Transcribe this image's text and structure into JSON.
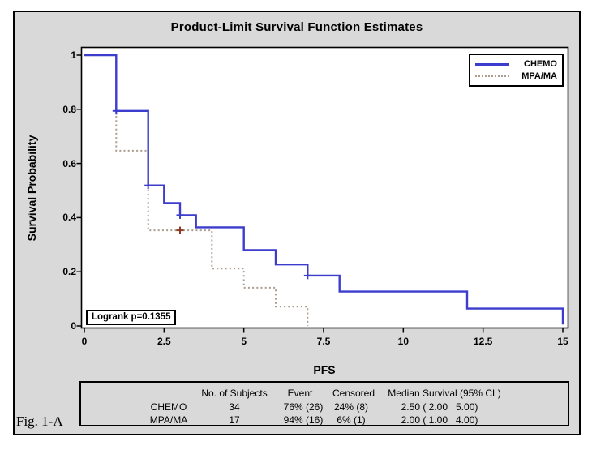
{
  "figure": {
    "fig_label": "Fig. 1-A"
  },
  "chart_data": {
    "type": "line",
    "subtype": "kaplan-meier-step",
    "title": "Product-Limit Survival Function Estimates",
    "xlabel": "PFS",
    "ylabel": "Survival Probability",
    "xlim": [
      0,
      15
    ],
    "ylim": [
      0,
      1
    ],
    "grid": false,
    "legend_position": "top-right",
    "annotation": "Logrank p=0.1355",
    "xticks": {
      "values": [
        0,
        2.5,
        5,
        7.5,
        10,
        12.5,
        15
      ],
      "labels": [
        "0",
        "2.5",
        "5",
        "7.5",
        "10",
        "12.5",
        "15"
      ]
    },
    "yticks": {
      "values": [
        0,
        0.2,
        0.4,
        0.6,
        0.8,
        1
      ],
      "labels": [
        "0",
        "0.2",
        "0.4",
        "0.6",
        "0.8",
        "1"
      ]
    },
    "series": [
      {
        "name": "CHEMO",
        "color": "#3c3ccd",
        "line_style": "solid",
        "points": [
          [
            0,
            1
          ],
          [
            1,
            1
          ],
          [
            1,
            0.794
          ],
          [
            2,
            0.794
          ],
          [
            2,
            0.519
          ],
          [
            2.5,
            0.519
          ],
          [
            2.5,
            0.454
          ],
          [
            3,
            0.454
          ],
          [
            3,
            0.409
          ],
          [
            3.5,
            0.409
          ],
          [
            3.5,
            0.364
          ],
          [
            5,
            0.364
          ],
          [
            5,
            0.28
          ],
          [
            6,
            0.28
          ],
          [
            6,
            0.227
          ],
          [
            7,
            0.227
          ],
          [
            7,
            0.186
          ],
          [
            8,
            0.186
          ],
          [
            8,
            0.127
          ],
          [
            12,
            0.127
          ],
          [
            12,
            0.064
          ],
          [
            15,
            0.064
          ],
          [
            15,
            0.005
          ]
        ],
        "censored_points": [
          [
            1,
            0.794
          ],
          [
            2,
            0.519
          ],
          [
            3,
            0.409
          ],
          [
            7,
            0.186
          ]
        ],
        "censor_color": "#3c3ccd"
      },
      {
        "name": "MPA/MA",
        "color": "#ac9c8e",
        "line_style": "dotted",
        "points": [
          [
            0,
            1
          ],
          [
            1,
            1
          ],
          [
            1,
            0.647
          ],
          [
            2,
            0.647
          ],
          [
            2,
            0.353
          ],
          [
            4,
            0.353
          ],
          [
            4,
            0.212
          ],
          [
            5,
            0.212
          ],
          [
            5,
            0.141
          ],
          [
            6,
            0.141
          ],
          [
            6,
            0.071
          ],
          [
            7,
            0.071
          ],
          [
            7,
            0
          ]
        ],
        "censored_points": [
          [
            3,
            0.353
          ]
        ],
        "censor_color": "#8e3a23"
      }
    ]
  },
  "summary_table": {
    "headers": [
      "No. of Subjects",
      "Event",
      "Censored",
      "Median Survival (95% CL)"
    ],
    "rows": [
      {
        "group": "CHEMO",
        "subjects": "34",
        "event": "76% (26)",
        "censored": "24% (8)",
        "median": "2.50 ( 2.00   5.00)"
      },
      {
        "group": "MPA/MA",
        "subjects": "17",
        "event": "94% (16)",
        "censored": "6% (1)",
        "median": "2.00 ( 1.00   4.00)"
      }
    ]
  }
}
